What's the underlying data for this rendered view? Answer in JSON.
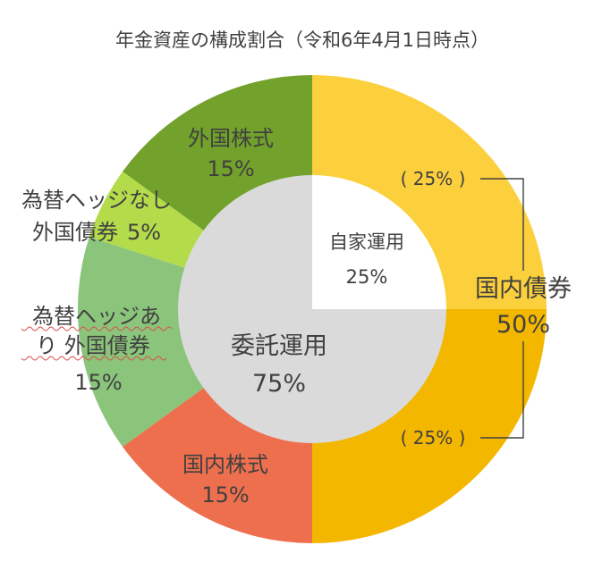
{
  "chart_data": {
    "type": "pie",
    "title": "年金資産の構成割合（令和6年4月1日時点）",
    "outer_ring": {
      "slices": [
        {
          "label": "国内債券",
          "value_label": "50%",
          "value": 50,
          "color": "#F4B700"
        },
        {
          "label": "国内株式",
          "value_label": "15%",
          "value": 15,
          "color": "#EE6F4E"
        },
        {
          "label_lines": [
            "為替ヘッジあ",
            "り 外国債券"
          ],
          "value_label": "15%",
          "value": 15,
          "color": "#8BC47B"
        },
        {
          "label_lines": [
            "為替ヘッジなし"
          ],
          "label2": "外国債券",
          "value_label": "5%",
          "value": 5,
          "color": "#B4DC4A"
        },
        {
          "label": "外国株式",
          "value_label": "15%",
          "value": 15,
          "color": "#72A22C"
        }
      ],
      "sub_segments": [
        {
          "label": "( 25% )",
          "value": 25,
          "color": "#FCD03D"
        },
        {
          "label": "( 25% )",
          "value": 25,
          "color": "#F4B700"
        }
      ]
    },
    "inner_ring": {
      "slices": [
        {
          "label": "自家運用",
          "value_label": "25%",
          "value": 25,
          "color": "#FFFFFF"
        },
        {
          "label": "委託運用",
          "value_label": "75%",
          "value": 75,
          "color": "#DADADA"
        }
      ]
    }
  }
}
